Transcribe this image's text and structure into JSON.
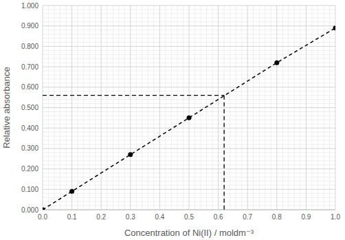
{
  "chart_data": {
    "type": "line",
    "x_label": "Concentration of Ni(II) / moldm⁻³",
    "y_label": "Relative absorbance",
    "x": [
      0,
      0.1,
      0.3,
      0.5,
      0.8,
      1.0
    ],
    "values": [
      0,
      0.09,
      0.27,
      0.45,
      0.72,
      0.89
    ],
    "color": "#000000",
    "marker": "circle",
    "line_style": "dashed",
    "reference": {
      "x": 0.62,
      "y": 0.56
    },
    "xlim": [
      0,
      1
    ],
    "xticks": [
      {
        "value": 0,
        "label": "0.0"
      },
      0.1,
      0.2,
      0.3,
      0.4,
      0.5,
      0.6,
      0.7,
      0.8,
      0.9,
      {
        "value": 1,
        "label": "1.0"
      }
    ],
    "ylim": [
      0,
      1
    ],
    "yticks": [
      {
        "value": 0,
        "label": "0.000"
      },
      {
        "value": 0.1,
        "label": "0.100"
      },
      {
        "value": 0.2,
        "label": "0.200"
      },
      {
        "value": 0.3,
        "label": "0.300"
      },
      {
        "value": 0.4,
        "label": "0.400"
      },
      {
        "value": 0.5,
        "label": "0.500"
      },
      {
        "value": 0.6,
        "label": "0.600"
      },
      {
        "value": 0.7,
        "label": "0.700"
      },
      {
        "value": 0.8,
        "label": "0.800"
      },
      {
        "value": 0.9,
        "label": "0.900"
      },
      {
        "value": 1,
        "label": "1.000"
      }
    ],
    "grid": true
  }
}
